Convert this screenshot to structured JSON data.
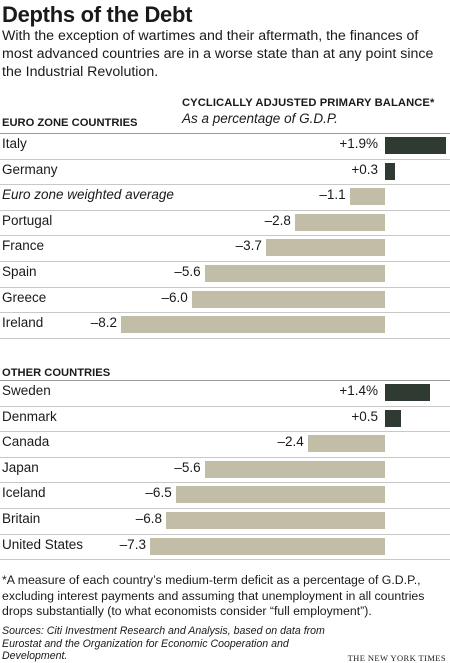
{
  "title": "Depths of the Debt",
  "subtitle": "With the exception of wartimes and their aftermath, the finances of most advanced countries are in a worse state than at any point since the Industrial Revolution.",
  "measure_title": "CYCLICALLY ADJUSTED PRIMARY BALANCE*",
  "measure_subtitle": "As a percentage of G.D.P.",
  "footnote": "*A measure of each country’s medium-term deficit as a percentage of G.D.P., excluding interest payments and assuming that unemployment in all countries drops substantially (to what economists consider “full employment”).",
  "sources": "Sources: Citi Investment Research and Analysis, based on data from Eurostat and the Organization for Economic Cooperation and Development.",
  "credit": "THE NEW YORK TIMES",
  "colors": {
    "negative": "#c2bda7",
    "positive": "#2f3b32"
  },
  "chart_data": {
    "type": "bar",
    "orientation": "horizontal",
    "groups": [
      {
        "name": "EURO ZONE COUNTRIES",
        "rows": [
          {
            "label": "Italy",
            "value": 1.9,
            "display": "+1.9%"
          },
          {
            "label": "Germany",
            "value": 0.3,
            "display": "+0.3"
          },
          {
            "label": "Euro zone weighted average",
            "value": -1.1,
            "display": "–1.1",
            "italic": true
          },
          {
            "label": "Portugal",
            "value": -2.8,
            "display": "–2.8"
          },
          {
            "label": "France",
            "value": -3.7,
            "display": "–3.7"
          },
          {
            "label": "Spain",
            "value": -5.6,
            "display": "–5.6"
          },
          {
            "label": "Greece",
            "value": -6.0,
            "display": "–6.0"
          },
          {
            "label": "Ireland",
            "value": -8.2,
            "display": "–8.2"
          }
        ]
      },
      {
        "name": "OTHER COUNTRIES",
        "rows": [
          {
            "label": "Sweden",
            "value": 1.4,
            "display": "+1.4%"
          },
          {
            "label": "Denmark",
            "value": 0.5,
            "display": "+0.5"
          },
          {
            "label": "Canada",
            "value": -2.4,
            "display": "–2.4"
          },
          {
            "label": "Japan",
            "value": -5.6,
            "display": "–5.6"
          },
          {
            "label": "Iceland",
            "value": -6.5,
            "display": "–6.5"
          },
          {
            "label": "Britain",
            "value": -6.8,
            "display": "–6.8"
          },
          {
            "label": "United States",
            "value": -7.3,
            "display": "–7.3"
          }
        ]
      }
    ]
  }
}
